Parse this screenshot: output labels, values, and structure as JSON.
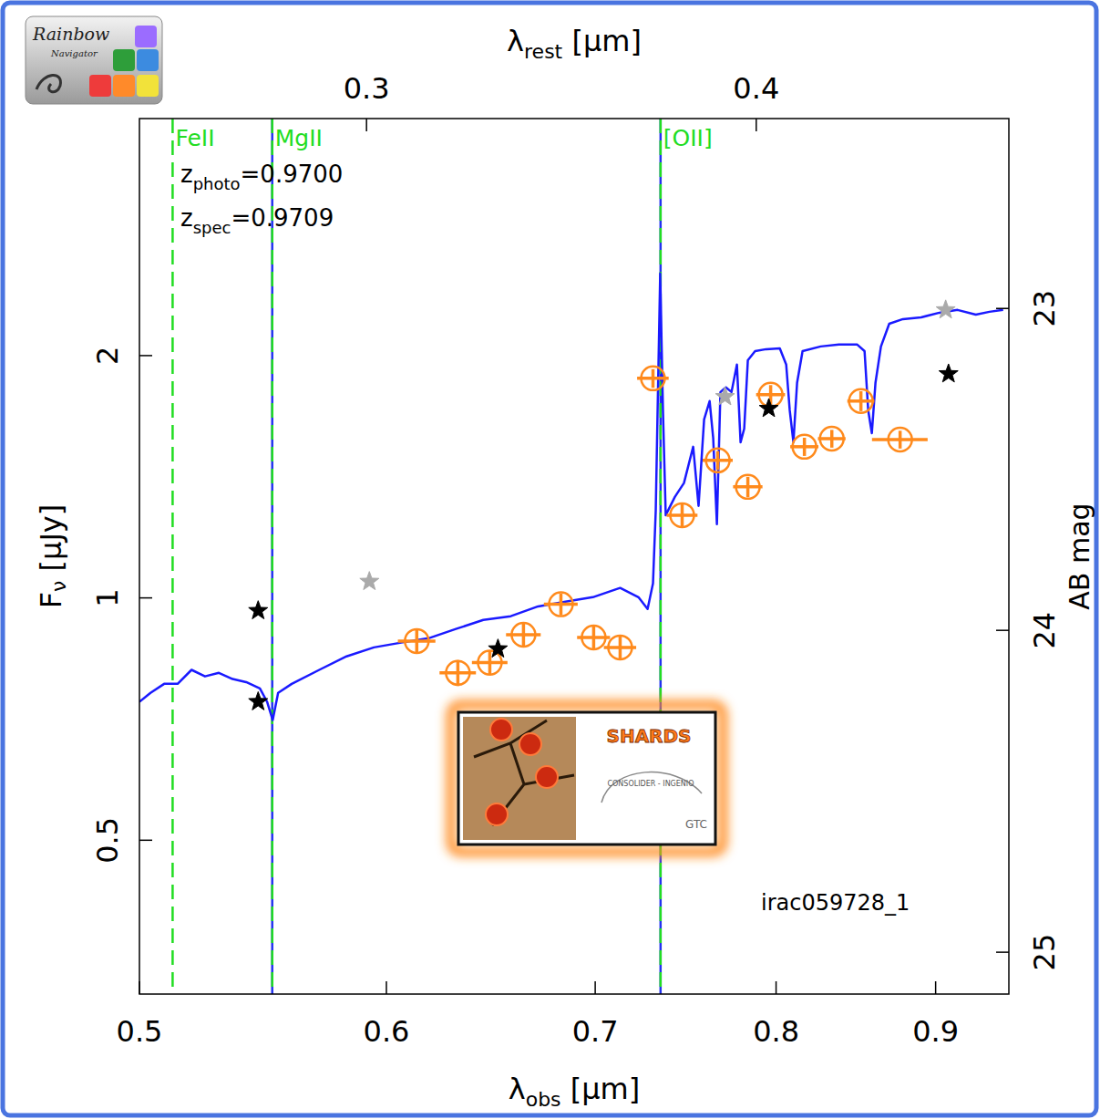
{
  "chart_data": {
    "type": "line",
    "log": true,
    "grid": false,
    "xlim": [
      0.5,
      0.95
    ],
    "xticks": [
      0.5,
      0.6,
      0.7,
      0.8,
      0.9
    ],
    "ylim": [
      0.322,
      3.94
    ],
    "yticks": [
      0.5,
      1,
      2
    ],
    "x2lim": [
      0.2537,
      0.482
    ],
    "x2ticks": [
      0.3,
      0.4
    ],
    "y2lim": [
      25.13,
      22.41
    ],
    "y2ticks": [
      23,
      24,
      25
    ],
    "x_label": {
      "symbol": "λ",
      "subscript": "obs",
      "text": " [μm]"
    },
    "x2_label": {
      "symbol": "λ",
      "subscript": "rest",
      "text": " [μm]"
    },
    "y_label": {
      "symbol": "F",
      "subscript": "ν",
      "text": " [μJy]"
    },
    "y2_label": "AB mag",
    "redshifts": [
      {
        "symbol": "z",
        "subscript": "photo",
        "text": "=0.9700"
      },
      {
        "symbol": "z",
        "subscript": "spec",
        "text": "=0.9709"
      }
    ],
    "object_id": "irac059728_1",
    "vertical_lines": [
      {
        "x": 0.5515,
        "color": "#2233ee",
        "line_style": "solid"
      },
      {
        "x": 0.7346,
        "color": "#2233ee",
        "line_style": "solid"
      },
      {
        "x": 0.5124,
        "label": "FeII",
        "color": "#22dd22",
        "line_style": "dashed"
      },
      {
        "x": 0.5515,
        "label": "MgII",
        "color": "#22dd22",
        "line_style": "dashed"
      },
      {
        "x": 0.7346,
        "label": "[OII]",
        "color": "#22dd22",
        "line_style": "dashed"
      }
    ],
    "series": [
      {
        "type": "line",
        "color": "#1a1aff",
        "line_style": "solid",
        "x": [
          0.5,
          0.5041,
          0.5092,
          0.5143,
          0.5196,
          0.5248,
          0.5302,
          0.5356,
          0.541,
          0.5465,
          0.5494,
          0.5517,
          0.5539,
          0.5595,
          0.571,
          0.5826,
          0.5945,
          0.6066,
          0.619,
          0.6316,
          0.6445,
          0.6577,
          0.6711,
          0.6848,
          0.6988,
          0.713,
          0.7227,
          0.7276,
          0.7305,
          0.732,
          0.733,
          0.7344,
          0.7359,
          0.7374,
          0.7424,
          0.7474,
          0.7525,
          0.7555,
          0.7586,
          0.7617,
          0.7637,
          0.7658,
          0.7678,
          0.7709,
          0.7741,
          0.7772,
          0.7793,
          0.7814,
          0.7835,
          0.7877,
          0.7941,
          0.8022,
          0.806,
          0.8081,
          0.8103,
          0.8125,
          0.8158,
          0.8268,
          0.838,
          0.8494,
          0.854,
          0.8563,
          0.8586,
          0.8609,
          0.8644,
          0.8697,
          0.8785,
          0.8904,
          0.9025,
          0.9147,
          0.9271,
          0.9365,
          0.946
        ],
        "values": [
          0.743,
          0.762,
          0.782,
          0.782,
          0.814,
          0.799,
          0.807,
          0.793,
          0.786,
          0.772,
          0.743,
          0.705,
          0.762,
          0.782,
          0.814,
          0.846,
          0.868,
          0.88,
          0.891,
          0.915,
          0.939,
          0.949,
          0.976,
          0.989,
          1.002,
          1.029,
          1.002,
          0.969,
          1.042,
          1.284,
          1.71,
          2.528,
          1.71,
          1.267,
          1.335,
          1.389,
          1.541,
          1.301,
          1.666,
          1.756,
          1.581,
          1.235,
          1.802,
          1.826,
          1.802,
          1.949,
          1.561,
          1.623,
          1.974,
          2.026,
          2.037,
          2.042,
          1.949,
          1.71,
          1.561,
          1.85,
          2.026,
          2.053,
          2.064,
          2.064,
          2.026,
          1.71,
          1.602,
          1.85,
          2.053,
          2.191,
          2.22,
          2.231,
          2.261,
          2.279,
          2.249,
          2.267,
          2.279
        ]
      },
      {
        "type": "scatter",
        "color": "#ff8a1c",
        "marker": "circle-plus",
        "x": [
          0.6136,
          0.6325,
          0.6476,
          0.6639,
          0.6825,
          0.6992,
          0.713,
          0.7305,
          0.7464,
          0.7663,
          0.7835,
          0.7968,
          0.8169,
          0.8336,
          0.8517,
          0.8767
        ],
        "values": [
          0.884,
          0.807,
          0.831,
          0.9,
          0.982,
          0.893,
          0.868,
          1.874,
          1.267,
          1.482,
          1.374,
          1.788,
          1.541,
          1.577,
          1.756,
          1.573
        ],
        "xerr": [
          0.0085,
          0.0085,
          0.0085,
          0.0085,
          0.0085,
          0.0085,
          0.0085,
          0.0085,
          0.0085,
          0.0085,
          0.0085,
          0.0085,
          0.0085,
          0.0085,
          0.0085,
          0.018
        ],
        "yerr": [
          0.03,
          0.03,
          0.03,
          0.03,
          0.03,
          0.03,
          0.03,
          0.05,
          0.04,
          0.04,
          0.04,
          0.05,
          0.04,
          0.04,
          0.05,
          0.04
        ]
      },
      {
        "type": "scatter",
        "color": "#000000",
        "marker": "star",
        "x": [
          0.5458,
          0.5458,
          0.6515,
          0.7957,
          0.9086
        ],
        "values": [
          0.743,
          0.964,
          0.864,
          1.719,
          1.898
        ]
      },
      {
        "type": "scatter",
        "color": "#aaaaaa",
        "marker": "star",
        "x": [
          0.5925,
          0.7704,
          0.9067
        ],
        "values": [
          1.048,
          1.778,
          2.279
        ]
      }
    ],
    "logos": {
      "rainbow": {
        "title": "Rainbow",
        "subtitle": "Navigator"
      },
      "shards": {
        "title": "SHARDS",
        "partner": "CONSOLIDER - INGENIO",
        "telescope": "GTC"
      }
    }
  }
}
